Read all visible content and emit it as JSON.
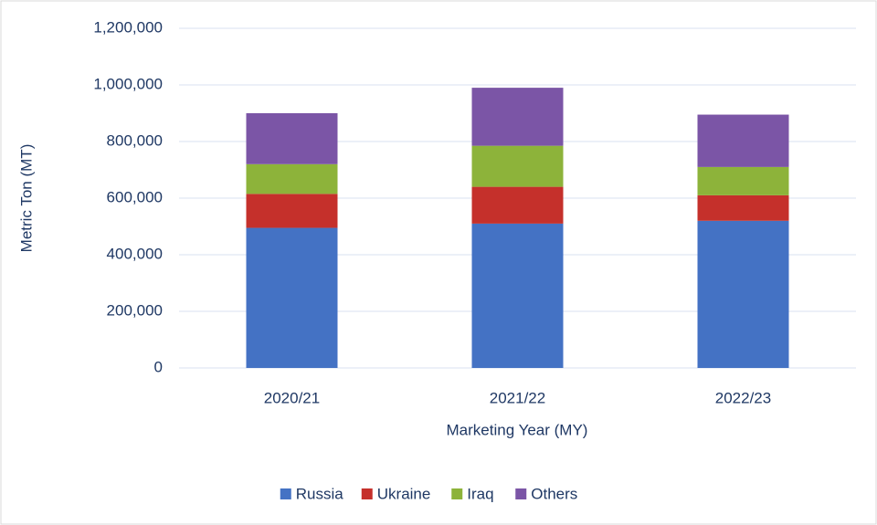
{
  "chart_data": {
    "type": "stacked_bar",
    "categories": [
      "2020/21",
      "2021/22",
      "2022/23"
    ],
    "series": [
      {
        "name": "Russia",
        "color": "#4472c4",
        "values": [
          495000,
          510000,
          520000
        ]
      },
      {
        "name": "Ukraine",
        "color": "#c5302b",
        "values": [
          120000,
          130000,
          90000
        ]
      },
      {
        "name": "Iraq",
        "color": "#8db33a",
        "values": [
          105000,
          145000,
          100000
        ]
      },
      {
        "name": "Others",
        "color": "#7b55a6",
        "values": [
          180000,
          205000,
          185000
        ]
      }
    ],
    "ylim": [
      0,
      1200000
    ],
    "yticks": [
      0,
      {
        "value": 200000,
        "label": "200,000"
      },
      {
        "value": 400000,
        "label": "400,000"
      },
      {
        "value": 600000,
        "label": "600,000"
      },
      {
        "value": 800000,
        "label": "800,000"
      },
      {
        "value": 1000000,
        "label": "1,000,000"
      },
      {
        "value": 1200000,
        "label": "1,200,000"
      }
    ],
    "y_label": "Metric Ton (MT)",
    "x_label": "Marketing Year (MY)",
    "grid": true,
    "legend": "bottom"
  }
}
